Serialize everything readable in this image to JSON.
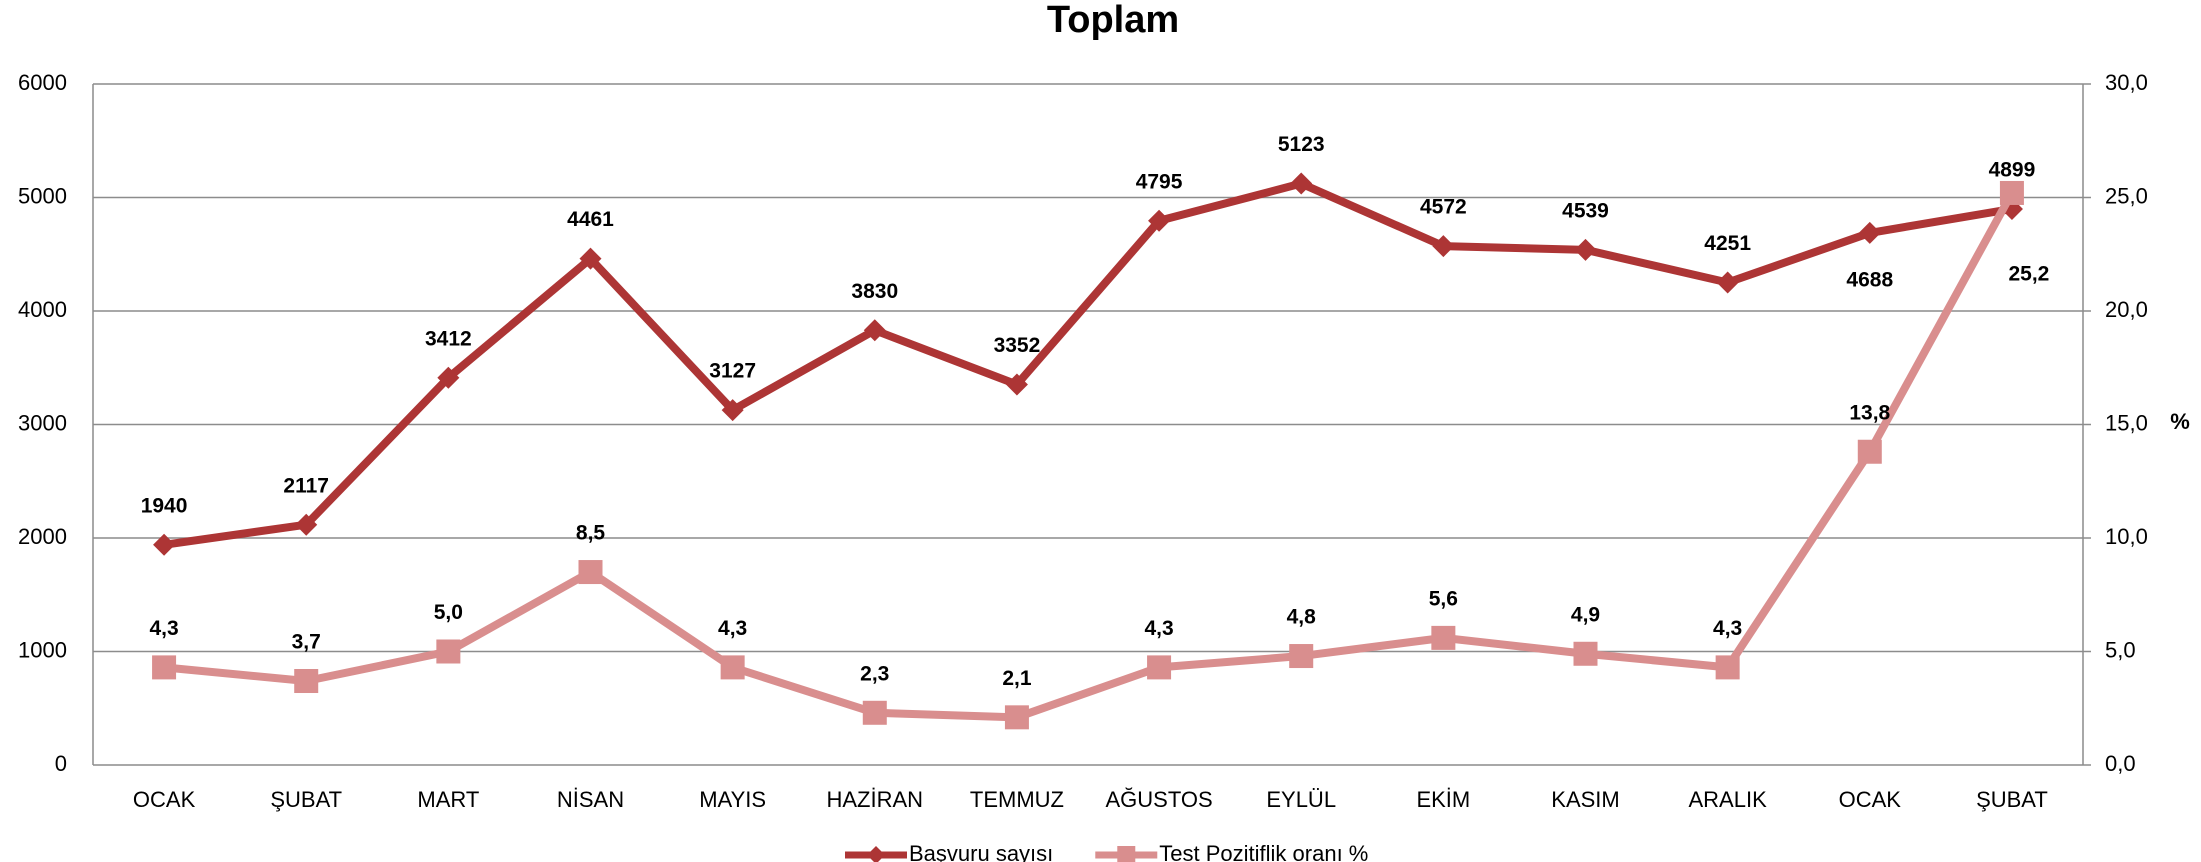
{
  "chart_data": {
    "type": "line",
    "title": "Toplam",
    "categories": [
      "OCAK",
      "ŞUBAT",
      "MART",
      "NİSAN",
      "MAYIS",
      "HAZİRAN",
      "TEMMUZ",
      "AĞUSTOS",
      "EYLÜL",
      "EKİM",
      "KASIM",
      "ARALIK",
      "OCAK",
      "ŞUBAT"
    ],
    "series": [
      {
        "name": "Başvuru sayısı",
        "color": "#ad3535",
        "marker": "diamond",
        "values": [
          1940,
          2117,
          3412,
          4461,
          3127,
          3830,
          3352,
          4795,
          5123,
          4572,
          4539,
          4251,
          4688,
          4899
        ]
      },
      {
        "name": "Test Pozitiflik oranı %",
        "color": "#d98e8e",
        "marker": "square",
        "axis": "y2",
        "values": [
          4.3,
          3.7,
          5.0,
          8.5,
          4.3,
          2.3,
          2.1,
          4.3,
          4.8,
          5.6,
          4.9,
          4.3,
          13.8,
          25.2
        ],
        "value_labels": [
          "4,3",
          "3,7",
          "5,0",
          "8,5",
          "4,3",
          "2,3",
          "2,1",
          "4,3",
          "4,8",
          "5,6",
          "4,9",
          "4,3",
          "13,8",
          "25,2"
        ]
      }
    ],
    "ylim": [
      0,
      6000
    ],
    "yticks": [
      0,
      1000,
      2000,
      3000,
      4000,
      5000,
      6000
    ],
    "y2lim": [
      0,
      30
    ],
    "y2label": "%",
    "y2ticks": [
      {
        "value": 0,
        "label": "0,0"
      },
      {
        "value": 5,
        "label": "5,0"
      },
      {
        "value": 10,
        "label": "10,0"
      },
      {
        "value": 15,
        "label": "15,0"
      },
      {
        "value": 20,
        "label": "20,0"
      },
      {
        "value": 25,
        "label": "25,0"
      },
      {
        "value": 30,
        "label": "30,0"
      }
    ],
    "grid": true,
    "legend": "bottom"
  }
}
